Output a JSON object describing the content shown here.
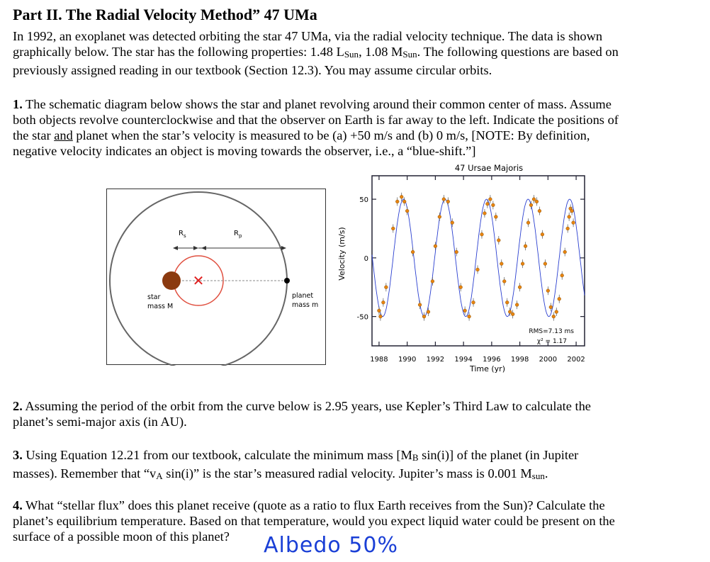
{
  "title": "Part II.  The Radial Velocity Method” 47 UMa",
  "intro": {
    "line1": "In 1992, an exoplanet was detected orbiting the star 47 UMa, via the radial velocity technique. The data is shown",
    "line2a": "graphically below. The star has the following properties: 1.48 L",
    "line2sub1": "Sun",
    "line2b": ", 1.08 M",
    "line2sub2": "Sun",
    "line2c": ". The following questions are based on",
    "line3": "previously assigned reading in our textbook (Section 12.3). You may assume circular orbits."
  },
  "q1": {
    "num": "1.",
    "line1": " The schematic diagram below shows the star and planet revolving around their common center of mass. Assume",
    "line2": "both objects revolve counterclockwise and that the observer on Earth is far away to the left. Indicate the positions of",
    "line3a": "the star ",
    "line3u": "and",
    "line3b": " planet when the star’s velocity is measured to be (a) +50 m/s and (b) 0 m/s, [NOTE: By definition,",
    "line4": "negative velocity indicates an object is moving towards the observer, i.e., a “blue-shift.”]"
  },
  "diagram": {
    "rs_label": "R",
    "rs_sub": "s",
    "rp_label": "R",
    "rp_sub": "p",
    "star_label1": "star",
    "star_label2": "mass M",
    "planet_label1": "planet",
    "planet_label2": "mass m",
    "com_marker": "✕",
    "star_color": "#8b3a0f",
    "com_color": "#e02020"
  },
  "chart_data": {
    "type": "scatter",
    "title": "47 Ursae Majoris",
    "xlabel": "Time  (yr)",
    "ylabel": "Velocity (m/s)",
    "xlim": [
      1987.5,
      2002.6
    ],
    "ylim": [
      -75,
      70
    ],
    "x_ticks": [
      "1988",
      "1990",
      "1992",
      "1994",
      "1996",
      "1998",
      "2000",
      "2002"
    ],
    "y_ticks": [
      "50",
      "0",
      "-50"
    ],
    "annotation_rms": "RMS=7.13 ms",
    "annotation_chi": "χ² = 1.17",
    "fit_curve": {
      "amplitude": 50,
      "period_yr": 2.95,
      "phase_ref_year": 1989.0
    },
    "series": [
      {
        "x": [
          1988.0,
          1988.1,
          1988.3,
          1988.5,
          1989.0,
          1989.3,
          1989.6,
          1989.8,
          1990.0,
          1990.4,
          1990.9,
          1991.2,
          1991.5,
          1991.8,
          1992.0,
          1992.3,
          1992.6,
          1992.9,
          1993.2,
          1993.5,
          1993.8,
          1994.1,
          1994.4,
          1994.7,
          1995.0,
          1995.3,
          1995.5,
          1995.7,
          1995.9,
          1996.1,
          1996.3,
          1996.5,
          1996.7,
          1996.9,
          1997.1,
          1997.3,
          1997.5,
          1997.8,
          1998.0,
          1998.2,
          1998.4,
          1998.6,
          1998.8,
          1999.0,
          1999.2,
          1999.4,
          1999.6,
          1999.8,
          2000.0,
          2000.2,
          2000.4,
          2000.6,
          2000.8,
          2001.0,
          2001.2,
          2001.4,
          2001.5,
          2001.6,
          2001.7,
          2001.8
        ],
        "y": [
          -45,
          -50,
          -38,
          -25,
          25,
          48,
          52,
          48,
          40,
          5,
          -40,
          -50,
          -46,
          -20,
          10,
          35,
          50,
          48,
          30,
          5,
          -25,
          -45,
          -50,
          -38,
          -10,
          20,
          38,
          46,
          50,
          45,
          35,
          15,
          -5,
          -20,
          -38,
          -46,
          -48,
          -40,
          -25,
          -5,
          10,
          30,
          45,
          50,
          48,
          40,
          20,
          -5,
          -28,
          -42,
          -50,
          -46,
          -35,
          -15,
          5,
          25,
          35,
          42,
          40,
          30
        ]
      }
    ],
    "point_color": "#e8840f",
    "curve_color": "#2a3fd0"
  },
  "q2": {
    "num": "2.",
    "line1": " Assuming the period of the orbit from the curve below is 2.95 years, use Kepler’s Third Law to calculate the",
    "line2": "planet’s semi-major axis (in AU)."
  },
  "q3": {
    "num": "3.",
    "line1a": " Using Equation 12.21 from our textbook, calculate the minimum mass [M",
    "line1sub": "B",
    "line1b": " sin(i)] of the planet (in Jupiter",
    "line2a": "masses). Remember that “v",
    "line2sub": "A",
    "line2b": " sin(i)” is the star’s measured radial velocity. Jupiter’s mass is 0.001 M",
    "line2sub2": "sun",
    "line2c": "."
  },
  "q4": {
    "num": "4.",
    "line1": " What “stellar flux” does this planet receive (quote as a ratio to flux Earth receives from the Sun)? Calculate the",
    "line2": "planet’s equilibrium temperature. Based on that temperature, would you expect liquid water could be present on the",
    "line3": "surface of a possible moon of this planet?"
  },
  "handwritten_note": "Albedo 50%"
}
